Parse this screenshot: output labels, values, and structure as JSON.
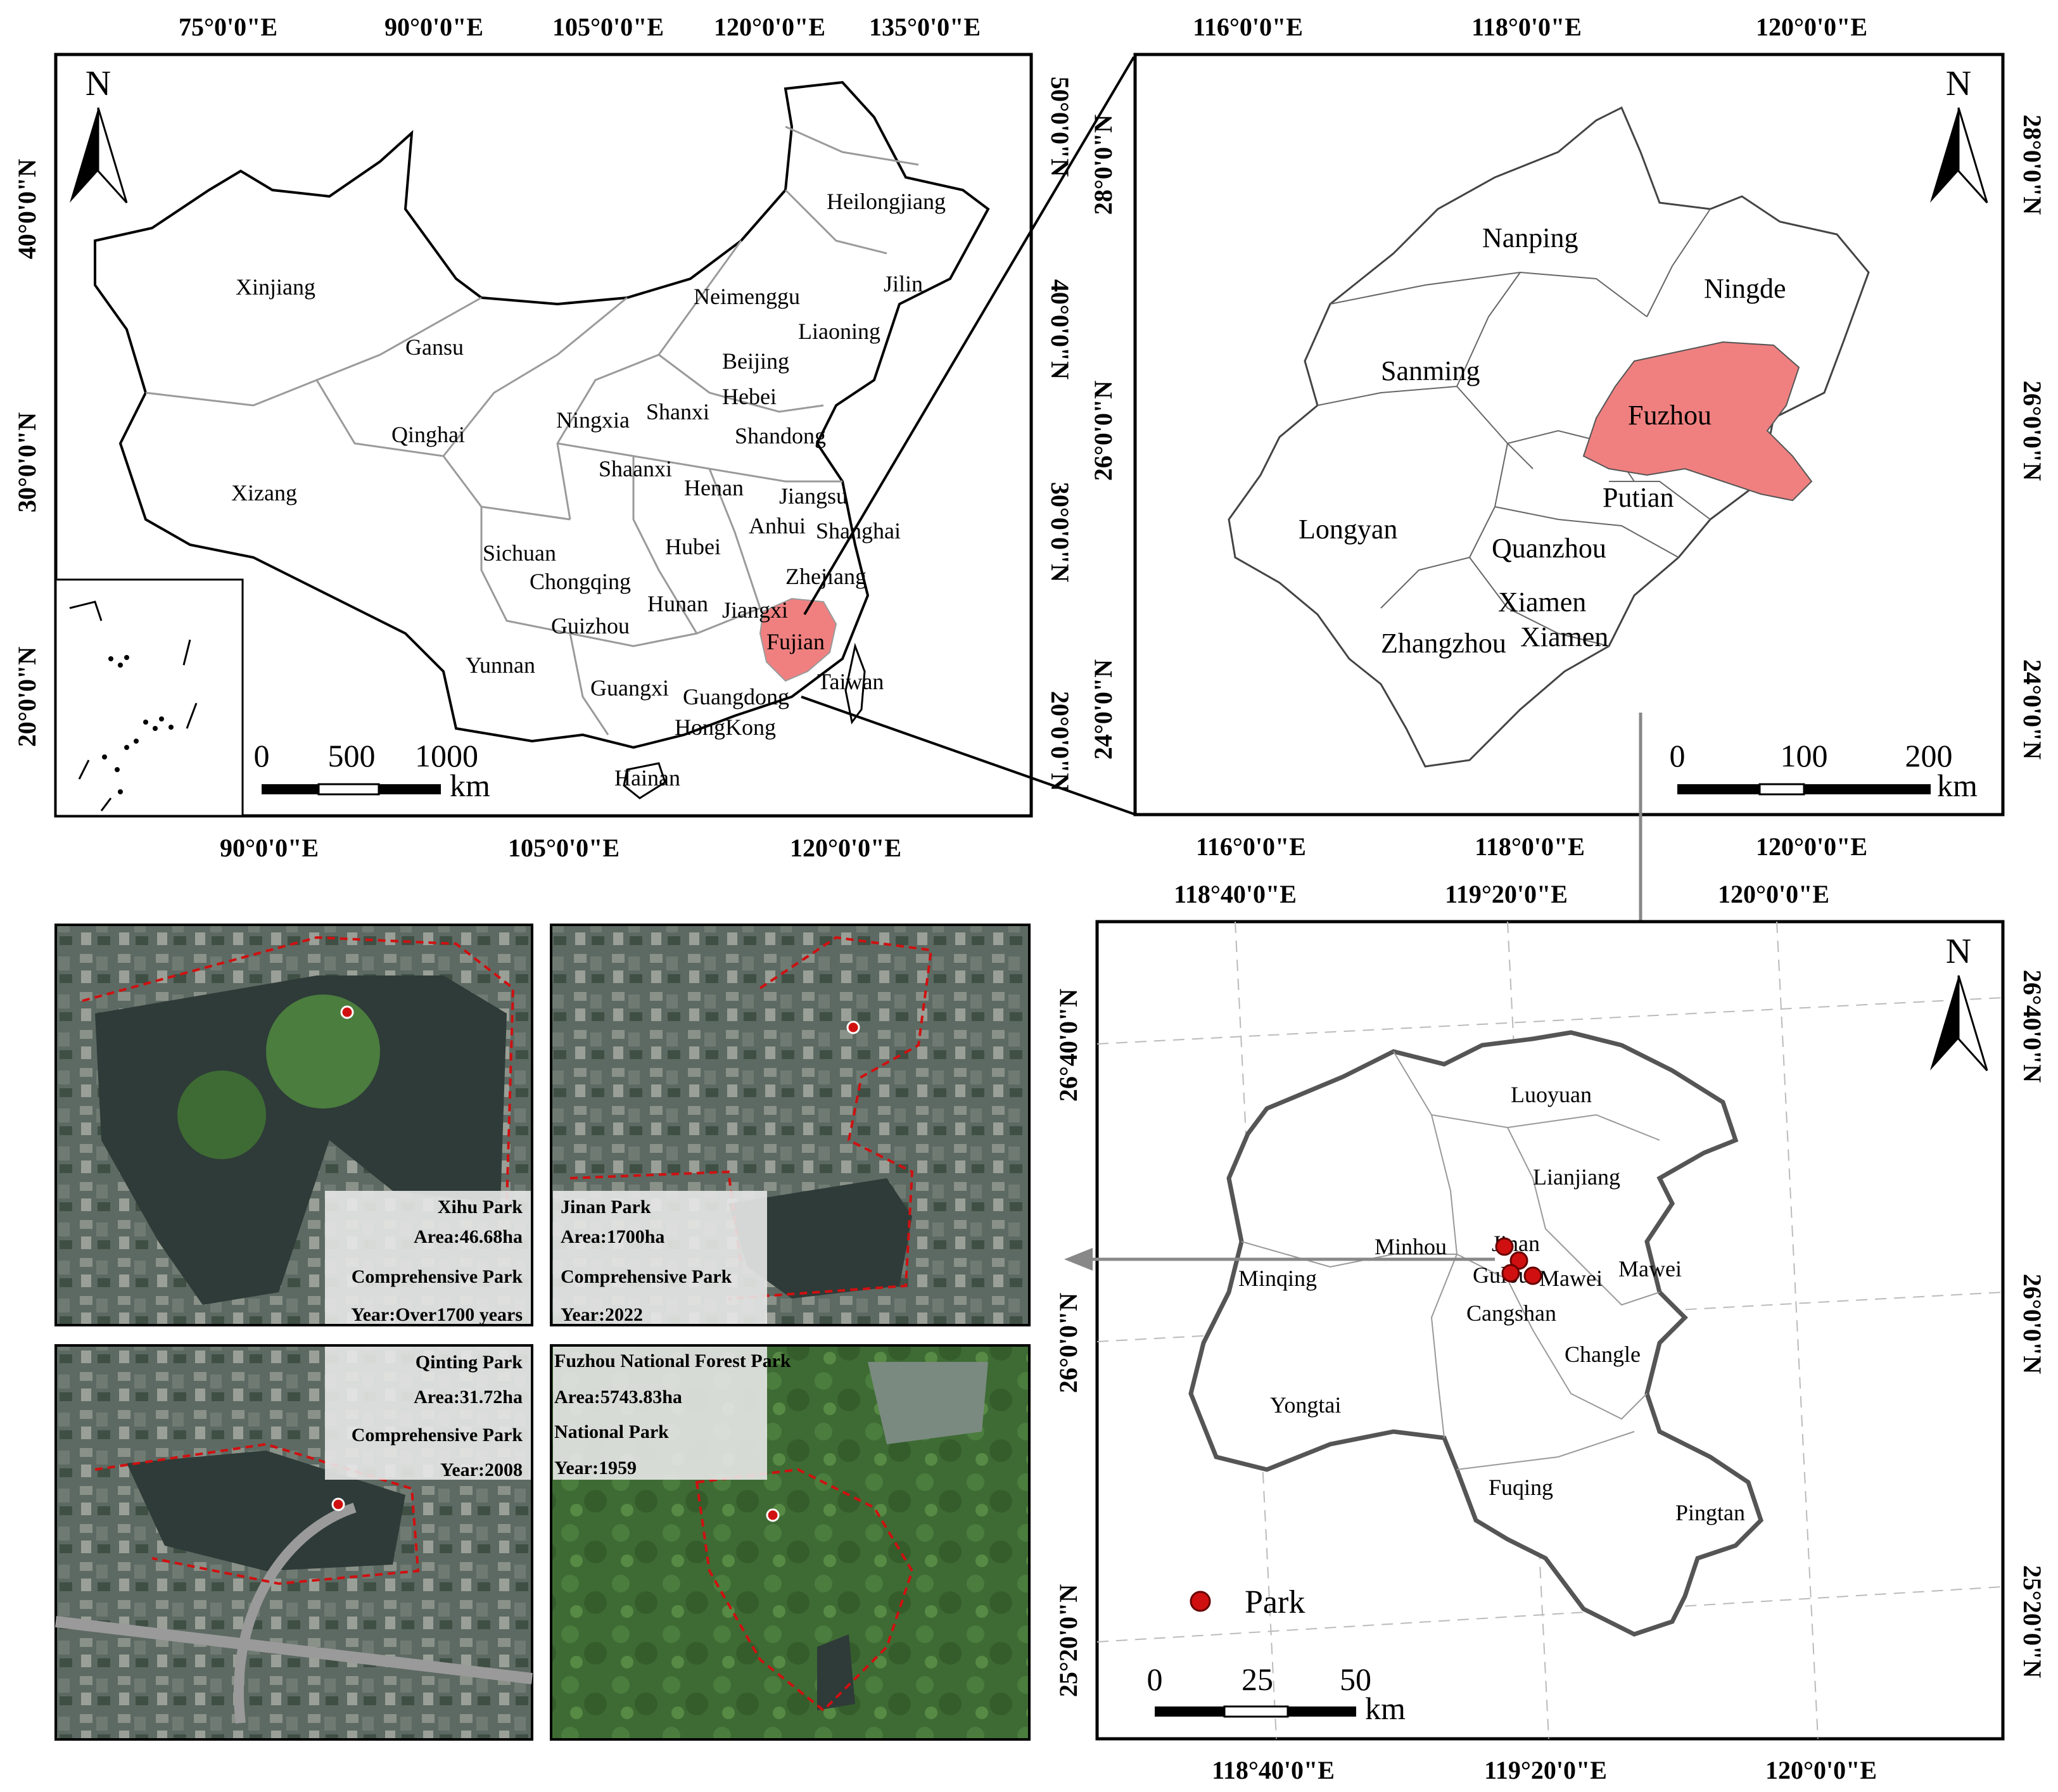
{
  "china_map": {
    "top_longitudes": [
      "75°0'0\"E",
      "90°0'0\"E",
      "105°0'0\"E",
      "120°0'0\"E",
      "135°0'0\"E"
    ],
    "bottom_longitudes": [
      "90°0'0\"E",
      "105°0'0\"E",
      "120°0'0\"E"
    ],
    "left_latitudes": [
      "40°0'0\"N",
      "30°0'0\"N",
      "20°0'0\"N"
    ],
    "right_latitudes": [
      "50°0'0\"N",
      "40°0'0\"N",
      "30°0'0\"N",
      "20°0'0\"N"
    ],
    "north_label": "N",
    "provinces": [
      "Heilongjiang",
      "Jilin",
      "Liaoning",
      "Neimenggu",
      "Xinjiang",
      "Gansu",
      "Beijing",
      "Hebei",
      "Qinghai",
      "Ningxia",
      "Shanxi",
      "Shandong",
      "Shaanxi",
      "Xizang",
      "Henan",
      "Jiangsu",
      "Anhui",
      "Shanghai",
      "Sichuan",
      "Hubei",
      "Chongqing",
      "Zhejiang",
      "Hunan",
      "Jiangxi",
      "Guizhou",
      "Fujian",
      "Yunnan",
      "Guangxi",
      "Guangdong",
      "Taiwan",
      "HongKong",
      "Hainan"
    ],
    "highlight": "Fujian",
    "scale_ticks": [
      "0",
      "500",
      "1000"
    ],
    "scale_unit": "km"
  },
  "fujian_map": {
    "top_longitudes": [
      "116°0'0\"E",
      "118°0'0\"E",
      "120°0'0\"E"
    ],
    "bottom_longitudes": [
      "116°0'0\"E",
      "118°0'0\"E",
      "120°0'0\"E"
    ],
    "left_latitudes": [
      "28°0'0\"N",
      "26°0'0\"N",
      "24°0'0\"N"
    ],
    "right_latitudes": [
      "28°0'0\"N",
      "26°0'0\"N",
      "24°0'0\"N"
    ],
    "north_label": "N",
    "cities": [
      "Nanping",
      "Ningde",
      "Sanming",
      "Fuzhou",
      "Putian",
      "Longyan",
      "Quanzhou",
      "Xiamen",
      "Zhangzhou",
      "Xiamen"
    ],
    "highlight": "Fuzhou",
    "scale_ticks": [
      "0",
      "100",
      "200"
    ],
    "scale_unit": "km"
  },
  "fuzhou_map": {
    "top_longitudes": [
      "118°40'0\"E",
      "119°20'0\"E",
      "120°0'0\"E"
    ],
    "bottom_longitudes": [
      "118°40'0\"E",
      "119°20'0\"E",
      "120°0'0\"E"
    ],
    "left_latitudes": [
      "26°40'0\"N",
      "26°0'0\"N",
      "25°20'0\"N"
    ],
    "right_latitudes": [
      "26°40'0\"N",
      "26°0'0\"N",
      "25°20'0\"N"
    ],
    "north_label": "N",
    "districts": [
      "Luoyuan",
      "Lianjiang",
      "Minhou",
      "Jinan",
      "Minqing",
      "Gulou",
      "Mawei",
      "Mawei",
      "Cangshan",
      "Changle",
      "Yongtai",
      "Fuqing",
      "Pingtan"
    ],
    "legend_label": "Park",
    "scale_ticks": [
      "0",
      "25",
      "50"
    ],
    "scale_unit": "km"
  },
  "parks": [
    {
      "name": "Xihu Park",
      "area": "Area:46.68ha",
      "type": "Comprehensive Park",
      "year": "Year:Over1700 years"
    },
    {
      "name": "Jinan Park",
      "area": "Area:1700ha",
      "type": "Comprehensive Park",
      "year": "Year:2022"
    },
    {
      "name": "Qinting Park",
      "area": "Area:31.72ha",
      "type": "Comprehensive Park",
      "year": "Year:2008"
    },
    {
      "name": "Fuzhou National Forest Park",
      "area": "Area:5743.83ha",
      "type": "National Park",
      "year": "Year:1959"
    }
  ],
  "colors": {
    "highlight": "#f08080",
    "park_marker": "#d01010",
    "province_line": "#9a9a9a",
    "frame": "#000000"
  }
}
